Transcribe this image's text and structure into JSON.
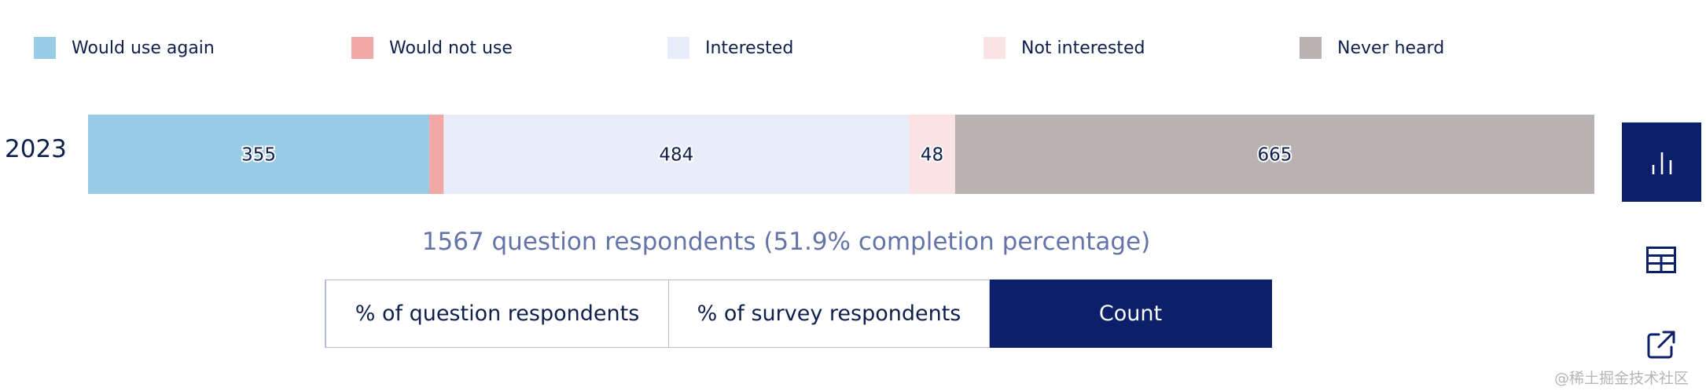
{
  "legend": [
    {
      "label": "Would use again",
      "color": "#98cbe6"
    },
    {
      "label": "Would not use",
      "color": "#f2a8a4"
    },
    {
      "label": "Interested",
      "color": "#e9ecf9"
    },
    {
      "label": "Not interested",
      "color": "#fbe3e3"
    },
    {
      "label": "Never heard",
      "color": "#b8b2b3"
    }
  ],
  "chart_data": {
    "type": "bar",
    "orientation": "horizontal",
    "stacked": true,
    "categories": [
      "2023"
    ],
    "series": [
      {
        "name": "Would use again",
        "values": [
          355
        ],
        "color": "#98cbe6",
        "label_shown": true
      },
      {
        "name": "Would not use",
        "values": [
          15
        ],
        "color": "#f2a8a4",
        "label_shown": false
      },
      {
        "name": "Interested",
        "values": [
          484
        ],
        "color": "#e9ecf9",
        "label_shown": true
      },
      {
        "name": "Not interested",
        "values": [
          48
        ],
        "color": "#fbe3e3",
        "label_shown": true
      },
      {
        "name": "Never heard",
        "values": [
          665
        ],
        "color": "#b8b2b3",
        "label_shown": true
      }
    ],
    "legend_position": "top",
    "grid": false
  },
  "year_label": "2023",
  "summary": "1567 question respondents (51.9% completion percentage)",
  "toggle": {
    "question_label": "% of question respondents",
    "survey_label": "% of survey respondents",
    "count_label": "Count",
    "selected": "Count"
  },
  "side_buttons": {
    "chart_icon": "bar-chart-icon",
    "table_icon": "table-icon",
    "open_icon": "external-link-icon"
  },
  "watermark": "@稀土掘金技术社区",
  "colors": {
    "accent": "#0c1f6b",
    "text": "#0e1f4d",
    "summary": "#6473a8"
  }
}
